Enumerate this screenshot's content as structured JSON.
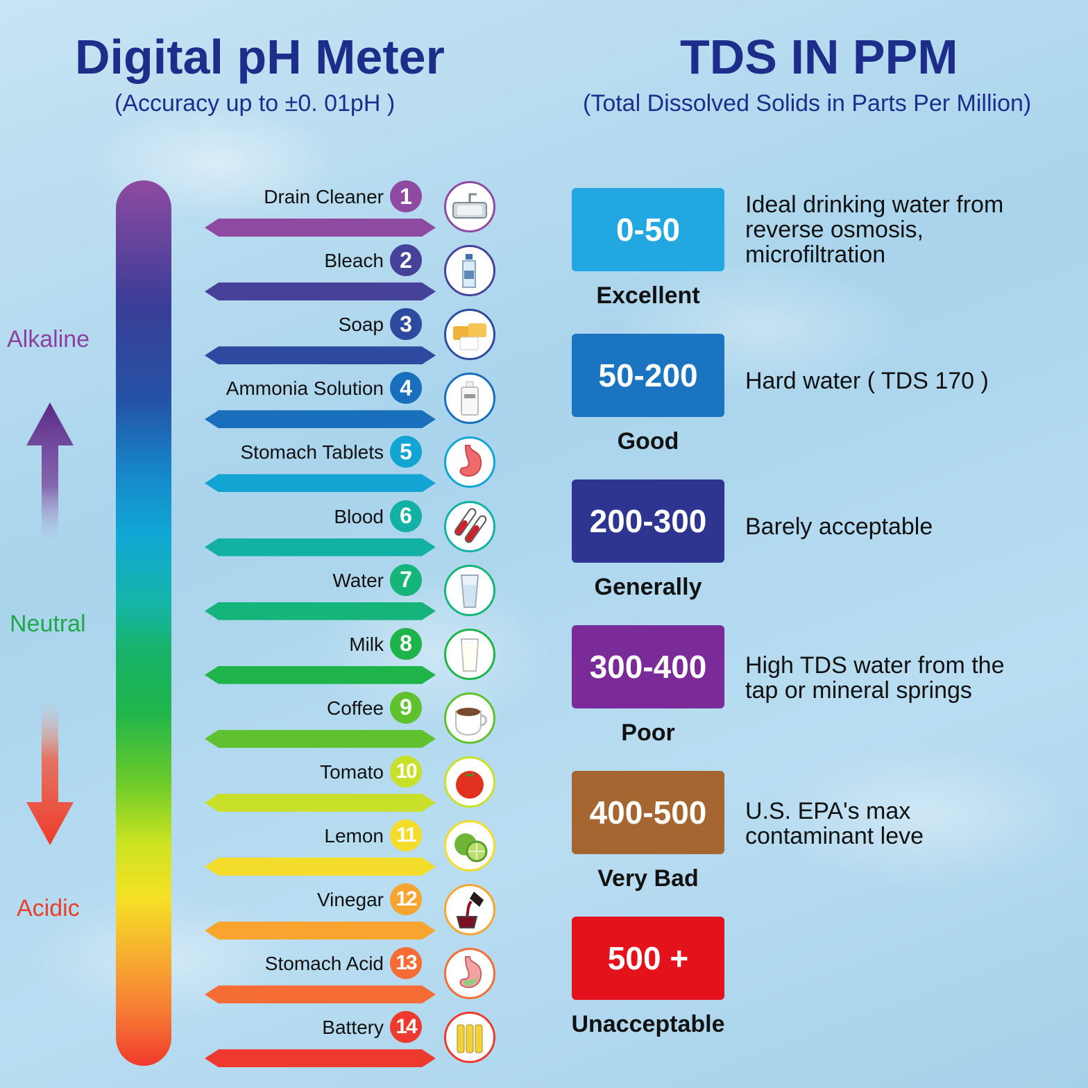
{
  "ph": {
    "title": "Digital pH Meter",
    "subtitle": "(Accuracy up to  ±0. 01pH )",
    "sides": {
      "alkaline": "Alkaline",
      "neutral": "Neutral",
      "acidic": "Acidic"
    },
    "colors": {
      "alkaline": "#8b3fa0",
      "neutral": "#1ea84a",
      "acidic": "#e8402c"
    },
    "items": [
      {
        "label": "Drain Cleaner",
        "num": "1",
        "color": "#8e4aa0",
        "icon": "sink-icon"
      },
      {
        "label": "Bleach",
        "num": "2",
        "color": "#46429a",
        "icon": "bleach-bottle-icon"
      },
      {
        "label": "Soap",
        "num": "3",
        "color": "#2e4aa0",
        "icon": "soap-icon"
      },
      {
        "label": "Ammonia Solution",
        "num": "4",
        "color": "#1a6fbd",
        "icon": "ammonia-bottle-icon"
      },
      {
        "label": "Stomach Tablets",
        "num": "5",
        "color": "#12a4d3",
        "icon": "stomach-icon"
      },
      {
        "label": "Blood",
        "num": "6",
        "color": "#13b0a6",
        "icon": "blood-tubes-icon"
      },
      {
        "label": "Water",
        "num": "7",
        "color": "#15b47a",
        "icon": "water-glass-icon"
      },
      {
        "label": "Milk",
        "num": "8",
        "color": "#1fb449",
        "icon": "milk-glass-icon"
      },
      {
        "label": "Coffee",
        "num": "9",
        "color": "#5fc12e",
        "icon": "coffee-cup-icon"
      },
      {
        "label": "Tomato",
        "num": "10",
        "color": "#c9e02a",
        "icon": "tomato-icon"
      },
      {
        "label": "Lemon",
        "num": "11",
        "color": "#f4dc2a",
        "icon": "lime-icon"
      },
      {
        "label": "Vinegar",
        "num": "12",
        "color": "#f7a431",
        "icon": "vinegar-icon"
      },
      {
        "label": "Stomach Acid",
        "num": "13",
        "color": "#f56c35",
        "icon": "stomach-acid-icon"
      },
      {
        "label": "Battery",
        "num": "14",
        "color": "#ee3a2e",
        "icon": "battery-icon"
      }
    ]
  },
  "tds": {
    "title": "TDS IN PPM",
    "subtitle": "(Total Dissolved Solids in Parts Per Million)",
    "levels": [
      {
        "range": "0-50",
        "rating": "Excellent",
        "desc": "Ideal drinking water from\nreverse osmosis,\nmicrofiltration",
        "color": "#23a7e0"
      },
      {
        "range": "50-200",
        "rating": "Good",
        "desc": "Hard water ( TDS 170 )",
        "color": "#1a74c0"
      },
      {
        "range": "200-300",
        "rating": "Generally",
        "desc": "Barely acceptable",
        "color": "#2d3591"
      },
      {
        "range": "300-400",
        "rating": "Poor",
        "desc": "High TDS water from the\ntap or mineral springs",
        "color": "#7a2b98"
      },
      {
        "range": "400-500",
        "rating": "Very Bad",
        "desc": "U.S. EPA's max\ncontaminant leve",
        "color": "#a66632"
      },
      {
        "range": "500 +",
        "rating": "Unacceptable",
        "desc": "",
        "color": "#e3121b"
      }
    ]
  }
}
